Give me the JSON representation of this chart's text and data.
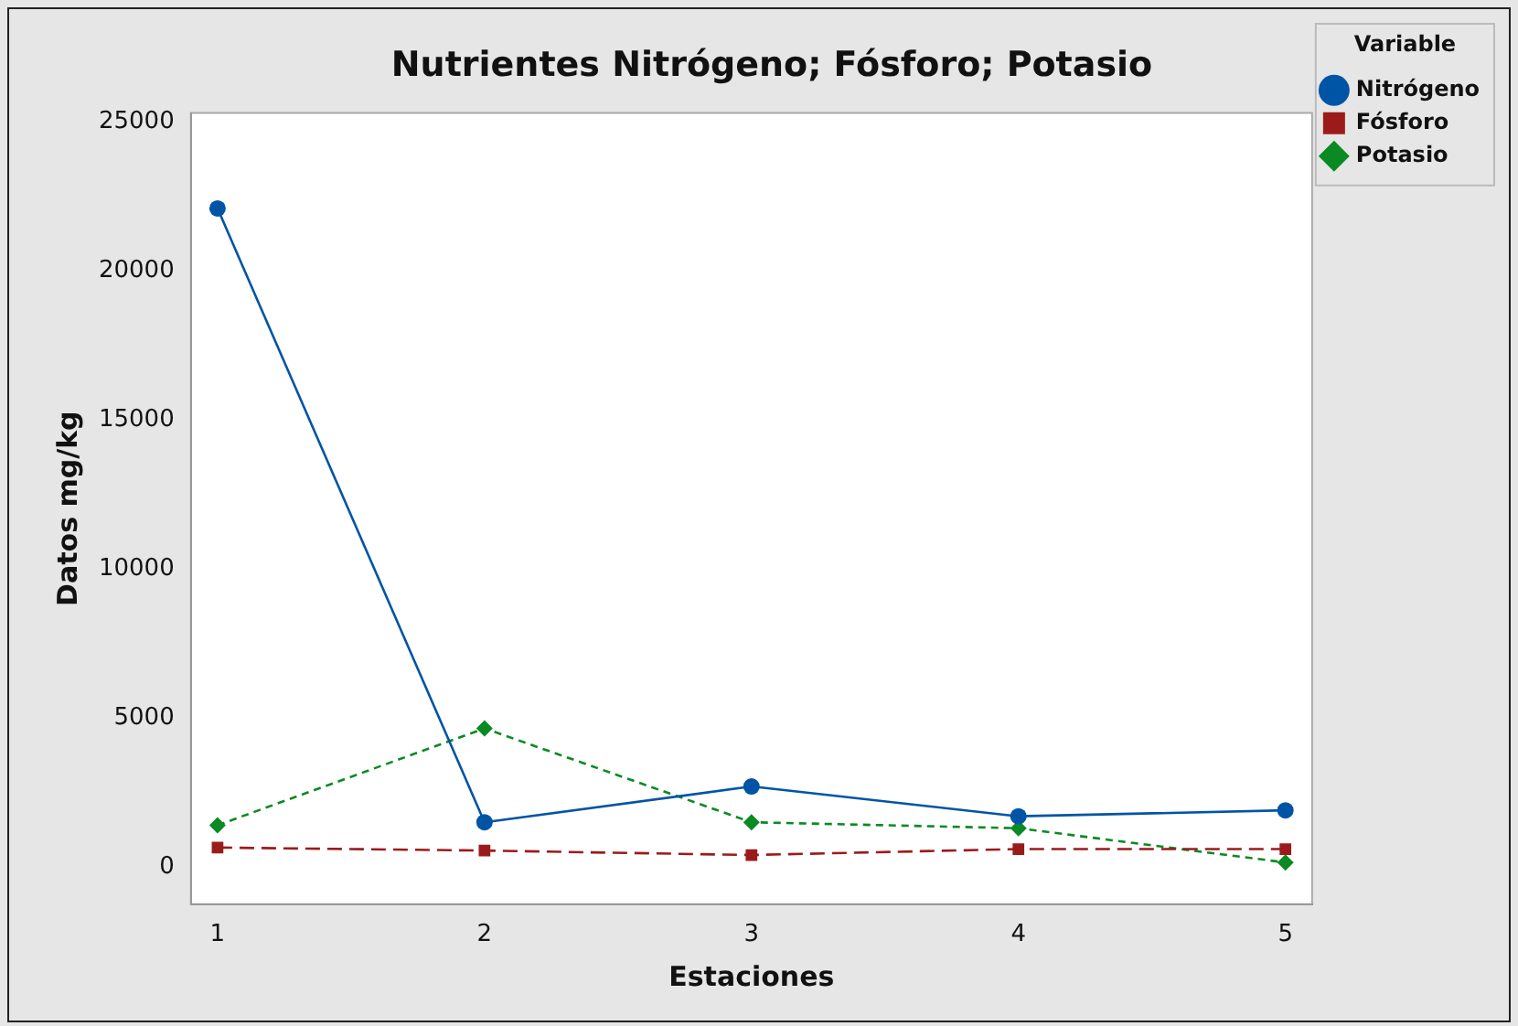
{
  "chart_data": {
    "type": "line",
    "title": "Nutrientes Nitrógeno; Fósforo; Potasio",
    "xlabel": "Estaciones",
    "ylabel": "Datos mg/kg",
    "legend_title": "Variable",
    "legend": "top right",
    "x": [
      1,
      2,
      3,
      4,
      5
    ],
    "xlim": [
      0.9,
      5.1
    ],
    "xticks": [
      1,
      2,
      3,
      4,
      5
    ],
    "ylim": [
      -1250,
      25300
    ],
    "yticks": [
      0,
      5000,
      10000,
      15000,
      20000,
      25000
    ],
    "grid": false,
    "series": [
      {
        "name": "Nitrógeno",
        "color": "#0054a6",
        "marker": "circle",
        "line_style": "solid",
        "values": [
          22100,
          1500,
          2700,
          1700,
          1900
        ]
      },
      {
        "name": "Fósforo",
        "color": "#9b1b1b",
        "marker": "square",
        "line_style": "dashed",
        "values": [
          650,
          550,
          400,
          600,
          600
        ]
      },
      {
        "name": "Potasio",
        "color": "#0a8a22",
        "marker": "diamond",
        "line_style": "dotted",
        "values": [
          1400,
          4650,
          1500,
          1300,
          150
        ]
      }
    ]
  }
}
